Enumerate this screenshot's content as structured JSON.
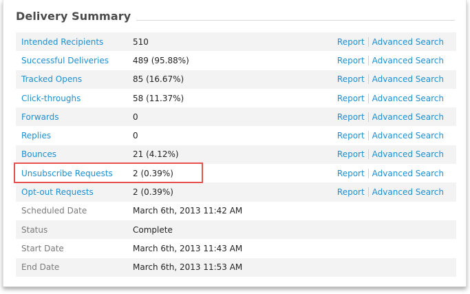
{
  "section": {
    "title": "Delivery Summary"
  },
  "rows": [
    {
      "label": "Intended Recipients",
      "value": "510",
      "report": "Report",
      "advanced": "Advanced Search"
    },
    {
      "label": "Successful Deliveries",
      "value": "489 (95.88%)",
      "report": "Report",
      "advanced": "Advanced Search"
    },
    {
      "label": "Tracked Opens",
      "value": "85 (16.67%)",
      "report": "Report",
      "advanced": "Advanced Search"
    },
    {
      "label": "Click-throughs",
      "value": "58 (11.37%)",
      "report": "Report",
      "advanced": "Advanced Search"
    },
    {
      "label": "Forwards",
      "value": "0",
      "report": "Report",
      "advanced": "Advanced Search"
    },
    {
      "label": "Replies",
      "value": "0",
      "report": "Report",
      "advanced": "Advanced Search"
    },
    {
      "label": "Bounces",
      "value": "21 (4.12%)",
      "report": "Report",
      "advanced": "Advanced Search"
    },
    {
      "label": "Unsubscribe Requests",
      "value": "2 (0.39%)",
      "report": "Report",
      "advanced": "Advanced Search"
    },
    {
      "label": "Opt-out Requests",
      "value": "2 (0.39%)",
      "report": "Report",
      "advanced": "Advanced Search"
    },
    {
      "label": "Scheduled Date",
      "value": "March 6th, 2013 11:42 AM"
    },
    {
      "label": "Status",
      "value": "Complete"
    },
    {
      "label": "Start Date",
      "value": "March 6th, 2013 11:43 AM"
    },
    {
      "label": "End Date",
      "value": "March 6th, 2013 11:53 AM"
    }
  ],
  "colors": {
    "link": "#1b8fd1",
    "highlight": "#e8504f",
    "row_alt": "#f3f3f3"
  }
}
